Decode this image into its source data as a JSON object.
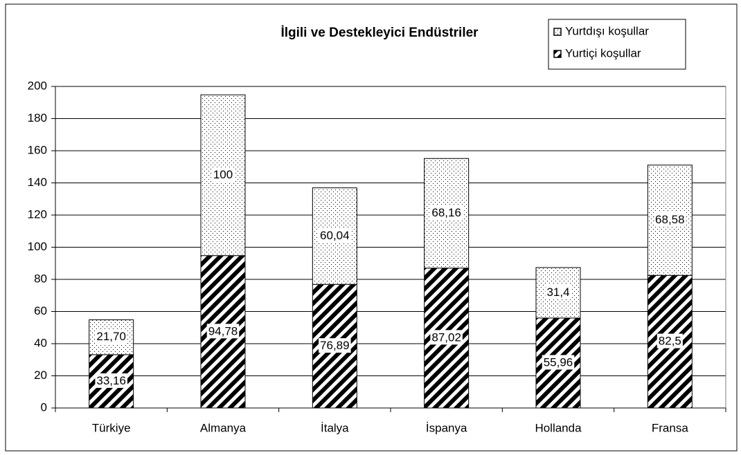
{
  "chart_data": {
    "type": "stacked_bar",
    "title": "İlgili ve Destekleyici Endüstriler",
    "categories": [
      "Türkiye",
      "Almanya",
      "İtalya",
      "İspanya",
      "Hollanda",
      "Fransa"
    ],
    "series": [
      {
        "name": "Yurtiçi koşullar",
        "color": "#000000",
        "pattern": "hatch",
        "values": [
          33.16,
          94.78,
          76.89,
          87.02,
          55.96,
          82.5
        ],
        "value_labels": [
          "33,16",
          "94,78",
          "76,89",
          "87,02",
          "55,96",
          "82,5"
        ]
      },
      {
        "name": "Yurtdışı koşullar",
        "color": "#000000",
        "pattern": "dots",
        "values": [
          21.7,
          100,
          60.04,
          68.16,
          31.4,
          68.58
        ],
        "value_labels": [
          "21,70",
          "100",
          "60,04",
          "68,16",
          "31,4",
          "68,58"
        ]
      }
    ],
    "ylim": [
      0,
      200
    ],
    "yticks": [
      0,
      20,
      40,
      60,
      80,
      100,
      120,
      140,
      160,
      180,
      200
    ],
    "grid": true,
    "legend": "top-right"
  }
}
